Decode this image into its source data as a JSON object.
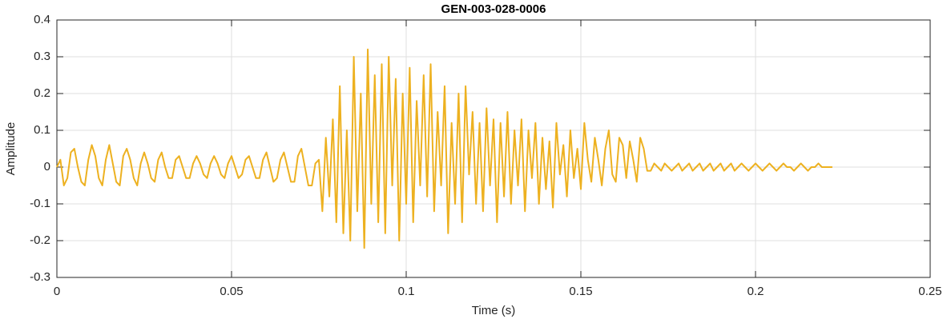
{
  "chart_data": {
    "type": "line",
    "title": "GEN-003-028-0006",
    "xlabel": "Time (s)",
    "ylabel": "Amplitude",
    "xlim": [
      0,
      0.25
    ],
    "ylim": [
      -0.3,
      0.4
    ],
    "xticks": [
      0,
      0.05,
      0.1,
      0.15,
      0.2,
      0.25
    ],
    "yticks": [
      -0.3,
      -0.2,
      -0.1,
      0,
      0.1,
      0.2,
      0.3,
      0.4
    ],
    "grid": true,
    "x": [
      0,
      0.001,
      0.002,
      0.003,
      0.004,
      0.005,
      0.006,
      0.007,
      0.008,
      0.009,
      0.01,
      0.011,
      0.012,
      0.013,
      0.014,
      0.015,
      0.016,
      0.017,
      0.018,
      0.019,
      0.02,
      0.021,
      0.022,
      0.023,
      0.024,
      0.025,
      0.026,
      0.027,
      0.028,
      0.029,
      0.03,
      0.031,
      0.032,
      0.033,
      0.034,
      0.035,
      0.036,
      0.037,
      0.038,
      0.039,
      0.04,
      0.041,
      0.042,
      0.043,
      0.044,
      0.045,
      0.046,
      0.047,
      0.048,
      0.049,
      0.05,
      0.051,
      0.052,
      0.053,
      0.054,
      0.055,
      0.056,
      0.057,
      0.058,
      0.059,
      0.06,
      0.061,
      0.062,
      0.063,
      0.064,
      0.065,
      0.066,
      0.067,
      0.068,
      0.069,
      0.07,
      0.071,
      0.072,
      0.073,
      0.074,
      0.075,
      0.076,
      0.077,
      0.078,
      0.079,
      0.08,
      0.081,
      0.082,
      0.083,
      0.084,
      0.085,
      0.086,
      0.087,
      0.088,
      0.089,
      0.09,
      0.091,
      0.092,
      0.093,
      0.094,
      0.095,
      0.096,
      0.097,
      0.098,
      0.099,
      0.1,
      0.101,
      0.102,
      0.103,
      0.104,
      0.105,
      0.106,
      0.107,
      0.108,
      0.109,
      0.11,
      0.111,
      0.112,
      0.113,
      0.114,
      0.115,
      0.116,
      0.117,
      0.118,
      0.119,
      0.12,
      0.121,
      0.122,
      0.123,
      0.124,
      0.125,
      0.126,
      0.127,
      0.128,
      0.129,
      0.13,
      0.131,
      0.132,
      0.133,
      0.134,
      0.135,
      0.136,
      0.137,
      0.138,
      0.139,
      0.14,
      0.141,
      0.142,
      0.143,
      0.144,
      0.145,
      0.146,
      0.147,
      0.148,
      0.149,
      0.15,
      0.151,
      0.152,
      0.153,
      0.154,
      0.155,
      0.156,
      0.157,
      0.158,
      0.159,
      0.16,
      0.161,
      0.162,
      0.163,
      0.164,
      0.165,
      0.166,
      0.167,
      0.168,
      0.169,
      0.17,
      0.171,
      0.172,
      0.173,
      0.174,
      0.175,
      0.176,
      0.177,
      0.178,
      0.179,
      0.18,
      0.181,
      0.182,
      0.183,
      0.184,
      0.185,
      0.186,
      0.187,
      0.188,
      0.189,
      0.19,
      0.191,
      0.192,
      0.193,
      0.194,
      0.195,
      0.196,
      0.197,
      0.198,
      0.199,
      0.2,
      0.201,
      0.202,
      0.203,
      0.204,
      0.205,
      0.206,
      0.207,
      0.208,
      0.209,
      0.21,
      0.211,
      0.212,
      0.213,
      0.214,
      0.215,
      0.216,
      0.217,
      0.218,
      0.219,
      0.22,
      0.221,
      0.222
    ],
    "series": [
      {
        "color": "#EDB120",
        "values": [
          0.0,
          0.02,
          -0.05,
          -0.03,
          0.04,
          0.05,
          0.0,
          -0.04,
          -0.05,
          0.02,
          0.06,
          0.03,
          -0.03,
          -0.05,
          0.02,
          0.06,
          0.01,
          -0.04,
          -0.05,
          0.03,
          0.05,
          0.02,
          -0.03,
          -0.05,
          0.01,
          0.04,
          0.01,
          -0.03,
          -0.04,
          0.02,
          0.04,
          0.0,
          -0.03,
          -0.03,
          0.02,
          0.03,
          0.0,
          -0.03,
          -0.03,
          0.01,
          0.03,
          0.01,
          -0.02,
          -0.03,
          0.01,
          0.03,
          0.01,
          -0.02,
          -0.03,
          0.01,
          0.03,
          0.0,
          -0.03,
          -0.02,
          0.02,
          0.03,
          0.0,
          -0.03,
          -0.03,
          0.02,
          0.04,
          0.0,
          -0.04,
          -0.03,
          0.02,
          0.04,
          0.0,
          -0.04,
          -0.04,
          0.03,
          0.05,
          0.0,
          -0.05,
          -0.05,
          0.01,
          0.02,
          -0.12,
          0.08,
          -0.08,
          0.13,
          -0.15,
          0.22,
          -0.18,
          0.1,
          -0.2,
          0.3,
          -0.12,
          0.2,
          -0.22,
          0.32,
          -0.1,
          0.25,
          -0.15,
          0.28,
          -0.18,
          0.3,
          -0.05,
          0.24,
          -0.2,
          0.2,
          -0.1,
          0.27,
          -0.15,
          0.18,
          -0.05,
          0.25,
          -0.08,
          0.28,
          -0.12,
          0.15,
          -0.05,
          0.22,
          -0.18,
          0.12,
          -0.1,
          0.2,
          -0.15,
          0.22,
          -0.02,
          0.15,
          -0.1,
          0.12,
          -0.12,
          0.16,
          -0.05,
          0.13,
          -0.15,
          0.12,
          -0.08,
          0.15,
          -0.1,
          0.1,
          -0.05,
          0.13,
          -0.12,
          0.1,
          -0.03,
          0.12,
          -0.1,
          0.08,
          -0.06,
          0.07,
          -0.11,
          0.12,
          -0.02,
          0.06,
          -0.08,
          0.1,
          -0.03,
          0.05,
          -0.06,
          0.12,
          0.02,
          -0.04,
          0.08,
          0.02,
          -0.05,
          0.05,
          0.1,
          -0.02,
          -0.04,
          0.08,
          0.06,
          -0.03,
          0.07,
          0.02,
          -0.04,
          0.08,
          0.05,
          -0.01,
          -0.01,
          0.01,
          0.0,
          -0.01,
          0.01,
          0.0,
          -0.01,
          0.0,
          0.01,
          -0.01,
          0.0,
          0.01,
          -0.01,
          0.0,
          0.01,
          -0.01,
          0.0,
          0.01,
          -0.01,
          0.0,
          0.01,
          -0.01,
          0.0,
          0.01,
          -0.01,
          0.0,
          0.01,
          0.0,
          -0.01,
          0.0,
          0.01,
          0.0,
          -0.01,
          0.0,
          0.01,
          0.0,
          -0.01,
          0.0,
          0.01,
          0.0,
          0.0,
          -0.01,
          0.0,
          0.01,
          0.0,
          -0.01,
          0.0,
          0.0,
          0.01,
          0.0,
          0.0,
          0.0,
          0.0
        ]
      }
    ]
  }
}
